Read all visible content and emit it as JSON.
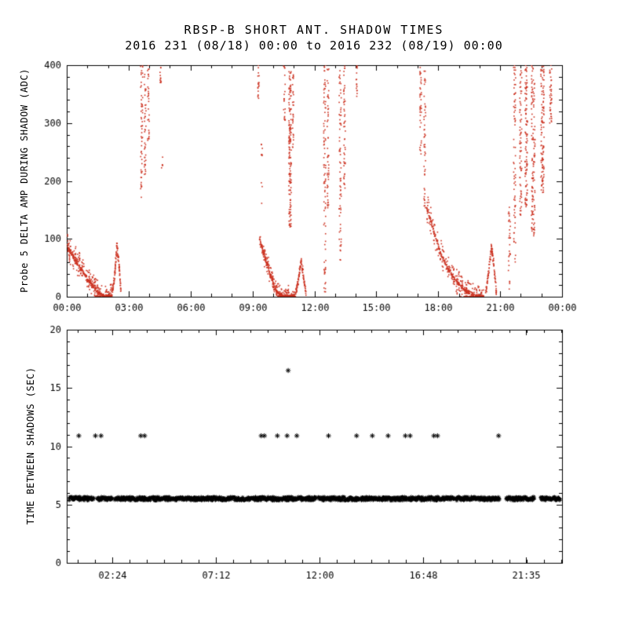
{
  "colors": {
    "background": "#ffffff",
    "foreground": "#000000",
    "accent_red": "#cc3322"
  },
  "header": {
    "title": "RBSP-B SHORT ANT. SHADOW TIMES",
    "subtitle": "2016 231 (08/18) 00:00 to 2016 232 (08/19) 00:00"
  },
  "labels": {
    "top_ylabel": "Probe 5 DELTA AMP DURING SHADOW (ADC)",
    "bottom_ylabel": "TIME BETWEEN SHADOWS (SEC)"
  },
  "chart_data": [
    {
      "type": "scatter",
      "panel": "top",
      "title": "RBSP-B SHORT ANT. SHADOW TIMES",
      "subtitle": "2016 231 (08/18) 00:00 to 2016 232 (08/19) 00:00",
      "ylabel": "Probe 5 DELTA AMP DURING SHADOW (ADC)",
      "xlabel": "",
      "grid": false,
      "xlim": [
        0,
        24
      ],
      "ylim": [
        0,
        400
      ],
      "xticks": [
        {
          "v": 0,
          "l": "00:00"
        },
        {
          "v": 3,
          "l": "03:00"
        },
        {
          "v": 6,
          "l": "06:00"
        },
        {
          "v": 9,
          "l": "09:00"
        },
        {
          "v": 12,
          "l": "12:00"
        },
        {
          "v": 15,
          "l": "15:00"
        },
        {
          "v": 18,
          "l": "18:00"
        },
        {
          "v": 21,
          "l": "21:00"
        },
        {
          "v": 24,
          "l": "00:00"
        }
      ],
      "yticks": [
        {
          "v": 0,
          "l": "0"
        },
        {
          "v": 100,
          "l": "100"
        },
        {
          "v": 200,
          "l": "200"
        },
        {
          "v": 300,
          "l": "300"
        },
        {
          "v": 400,
          "l": "400"
        }
      ],
      "x_minor": {
        "anchor": 0,
        "step": 1
      },
      "y_minor": {
        "anchor": 0,
        "step": 20
      },
      "marker": "dot",
      "marker_size": 1.6,
      "color": "#cc3322",
      "curves": [
        {
          "pts": [
            [
              0.02,
              88
            ],
            [
              0.35,
              68
            ],
            [
              0.75,
              45
            ],
            [
              1.15,
              24
            ],
            [
              1.5,
              8
            ],
            [
              1.8,
              1
            ],
            [
              2.18,
              1
            ]
          ],
          "n": 240,
          "jy": 26,
          "jt": 0.02
        },
        {
          "pts": [
            [
              2.2,
              4
            ],
            [
              2.33,
              40
            ],
            [
              2.43,
              88
            ],
            [
              2.55,
              50
            ],
            [
              2.63,
              6
            ]
          ],
          "n": 60,
          "jy": 9,
          "jt": 0.012
        },
        {
          "pts": [
            [
              9.35,
              98
            ],
            [
              9.6,
              68
            ],
            [
              9.9,
              34
            ],
            [
              10.15,
              9
            ],
            [
              10.45,
              1
            ],
            [
              11.05,
              1
            ]
          ],
          "n": 210,
          "jy": 20,
          "jt": 0.02
        },
        {
          "pts": [
            [
              11.08,
              3
            ],
            [
              11.22,
              30
            ],
            [
              11.36,
              62
            ],
            [
              11.5,
              28
            ],
            [
              11.6,
              4
            ]
          ],
          "n": 60,
          "jy": 9,
          "jt": 0.012
        },
        {
          "pts": [
            [
              17.45,
              152
            ],
            [
              17.75,
              118
            ],
            [
              18.1,
              76
            ],
            [
              18.5,
              46
            ],
            [
              18.95,
              24
            ],
            [
              19.35,
              9
            ],
            [
              19.75,
              2
            ],
            [
              20.2,
              1
            ]
          ],
          "n": 240,
          "jy": 26,
          "jt": 0.02
        },
        {
          "pts": [
            [
              20.3,
              5
            ],
            [
              20.45,
              45
            ],
            [
              20.58,
              88
            ],
            [
              20.72,
              45
            ],
            [
              20.82,
              6
            ]
          ],
          "n": 60,
          "jy": 9,
          "jt": 0.012
        }
      ],
      "columns": [
        [
          3.63,
          0.05,
          155,
          400,
          55
        ],
        [
          3.8,
          0.04,
          210,
          400,
          40
        ],
        [
          3.96,
          0.04,
          265,
          400,
          30
        ],
        [
          4.55,
          0.03,
          360,
          400,
          12
        ],
        [
          4.62,
          0.03,
          222,
          242,
          5
        ],
        [
          9.3,
          0.04,
          340,
          400,
          18
        ],
        [
          9.45,
          0.03,
          150,
          300,
          10
        ],
        [
          10.55,
          0.04,
          300,
          400,
          22
        ],
        [
          10.82,
          0.06,
          120,
          400,
          150
        ],
        [
          10.97,
          0.03,
          255,
          400,
          28
        ],
        [
          12.5,
          0.05,
          5,
          400,
          85
        ],
        [
          12.66,
          0.04,
          150,
          400,
          50
        ],
        [
          13.25,
          0.05,
          60,
          400,
          70
        ],
        [
          13.46,
          0.04,
          185,
          400,
          48
        ],
        [
          14.05,
          0.04,
          345,
          400,
          15
        ],
        [
          17.15,
          0.04,
          245,
          400,
          38
        ],
        [
          17.35,
          0.04,
          152,
          390,
          48
        ],
        [
          21.45,
          0.05,
          10,
          160,
          30
        ],
        [
          21.7,
          0.05,
          60,
          400,
          70
        ],
        [
          22.0,
          0.05,
          140,
          400,
          70
        ],
        [
          22.26,
          0.06,
          150,
          400,
          100
        ],
        [
          22.6,
          0.09,
          100,
          400,
          130
        ],
        [
          23.05,
          0.08,
          180,
          400,
          110
        ],
        [
          23.45,
          0.05,
          300,
          400,
          40
        ]
      ]
    },
    {
      "type": "scatter",
      "panel": "bottom",
      "title": "",
      "ylabel": "TIME BETWEEN SHADOWS (SEC)",
      "xlabel": "",
      "grid": false,
      "xlim": [
        0.29,
        23.24
      ],
      "ylim": [
        0,
        20
      ],
      "xticks": [
        {
          "v": 2.4,
          "l": "02:24"
        },
        {
          "v": 7.2,
          "l": "07:12"
        },
        {
          "v": 12.0,
          "l": "12:00"
        },
        {
          "v": 16.8,
          "l": "16:48"
        },
        {
          "v": 21.583,
          "l": "21:35"
        }
      ],
      "yticks": [
        {
          "v": 0,
          "l": "0"
        },
        {
          "v": 5,
          "l": "5"
        },
        {
          "v": 10,
          "l": "10"
        },
        {
          "v": 15,
          "l": "15"
        },
        {
          "v": 20,
          "l": "20"
        }
      ],
      "x_minor": {
        "anchor": 2.4,
        "step": 0.8
      },
      "y_minor": {
        "anchor": 0,
        "step": 1
      },
      "marker": "asterisk",
      "marker_size": 3.2,
      "color": "#000000",
      "band": {
        "y": 5.5,
        "y_jitter": 0.16,
        "t_step": 0.02,
        "r": 2.5,
        "segments": [
          [
            0.4,
            1.55
          ],
          [
            1.7,
            2.42
          ],
          [
            2.52,
            4.2
          ],
          [
            4.26,
            7.4
          ],
          [
            7.46,
            10.2
          ],
          [
            10.26,
            11.85
          ],
          [
            11.95,
            13.85
          ],
          [
            13.92,
            16.05
          ],
          [
            16.12,
            18.25
          ],
          [
            18.32,
            20.35
          ],
          [
            20.65,
            21.95
          ],
          [
            22.25,
            23.15
          ]
        ]
      },
      "upper_row": {
        "y": 10.9,
        "times": [
          0.85,
          1.62,
          1.88,
          3.72,
          3.9,
          9.3,
          9.45,
          10.05,
          10.5,
          10.95,
          12.42,
          13.72,
          14.45,
          15.18,
          15.98,
          16.2,
          17.3,
          17.47,
          20.3
        ]
      },
      "outliers": [
        {
          "t": 10.55,
          "y": 16.5
        }
      ]
    }
  ]
}
